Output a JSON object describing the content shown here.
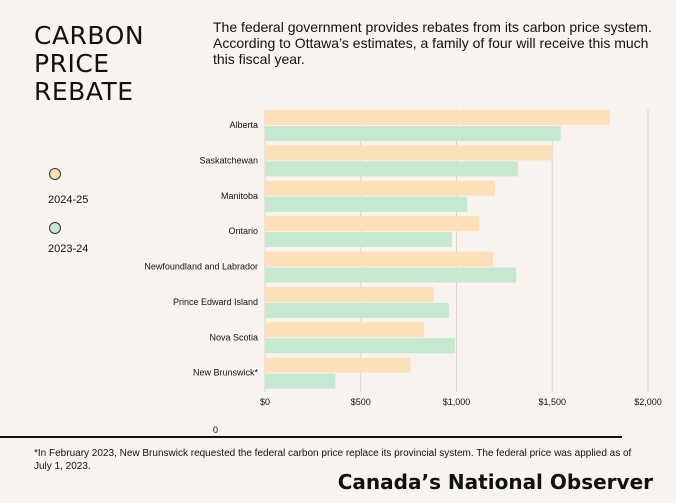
{
  "title": "CARBON PRICE REBATE",
  "subtitle": "The federal government provides rebates from its carbon price system. According to Ottawa’s estimates, a family of four will receive this much this fiscal year.",
  "legend": [
    {
      "label": "2024-25",
      "color": "#fde0b8"
    },
    {
      "label": "2023-24",
      "color": "#c6e8cf"
    }
  ],
  "chart_data": {
    "type": "bar",
    "orientation": "horizontal",
    "categories": [
      "Alberta",
      "Saskatchewan",
      "Manitoba",
      "Ontario",
      "Newfoundland and Labrador",
      "Prince Edward Island",
      "Nova Scotia",
      "New Brunswick*"
    ],
    "series": [
      {
        "name": "2024-25",
        "color": "#fde0b8",
        "values": [
          1800,
          1500,
          1200,
          1120,
          1190,
          880,
          830,
          760
        ]
      },
      {
        "name": "2023-24",
        "color": "#c6e8cf",
        "values": [
          1544,
          1320,
          1056,
          976,
          1312,
          960,
          992,
          368
        ]
      }
    ],
    "xlim": [
      0,
      2000
    ],
    "xticks": [
      {
        "value": 0,
        "label": "$0"
      },
      {
        "value": 500,
        "label": "$500"
      },
      {
        "value": 1000,
        "label": "$1,000"
      },
      {
        "value": 1500,
        "label": "$1,500"
      },
      {
        "value": 2000,
        "label": "$2,000"
      }
    ],
    "grid": true,
    "legend_position": "left"
  },
  "zero_label": "0",
  "footnote": "*In February 2023, New Brunswick requested the federal carbon price replace its provincial system. The federal price was applied as of July 1, 2023.",
  "brand": "Canada’s National Observer"
}
